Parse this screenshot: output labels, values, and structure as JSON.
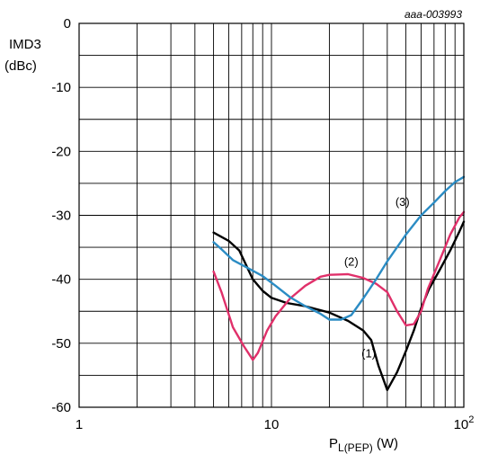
{
  "chart_data": {
    "type": "line",
    "code": "aaa-003993",
    "title": "",
    "ylabel_line1": "IMD3",
    "ylabel_line2": "(dBc)",
    "xlabel": "P",
    "xlabel_sub": "L(PEP)",
    "xlabel_unit": " (W)",
    "xscale": "log",
    "xlim": [
      1,
      100
    ],
    "ylim": [
      -60,
      0
    ],
    "grid": true,
    "x_tick_labels": [
      {
        "x": 1,
        "base": "1",
        "sup": ""
      },
      {
        "x": 10,
        "base": "10",
        "sup": ""
      },
      {
        "x": 100,
        "base": "10",
        "sup": "2"
      }
    ],
    "y_ticks": [
      0,
      -10,
      -20,
      -30,
      -40,
      -50,
      -60
    ],
    "y_tick_labels": [
      "0",
      "-10",
      "-20",
      "-30",
      "-40",
      "-50",
      "-60"
    ],
    "series": [
      {
        "label": "(1)",
        "color": "#000000",
        "label_at": {
          "x": 32,
          "y": -51.5
        },
        "points": [
          [
            5,
            -32.7
          ],
          [
            6,
            -34.0
          ],
          [
            6.8,
            -35.5
          ],
          [
            8,
            -40.0
          ],
          [
            9,
            -41.8
          ],
          [
            10,
            -42.9
          ],
          [
            12,
            -43.7
          ],
          [
            15,
            -44.2
          ],
          [
            20,
            -45.2
          ],
          [
            25,
            -46.5
          ],
          [
            30,
            -48.0
          ],
          [
            33,
            -49.5
          ],
          [
            36,
            -53.5
          ],
          [
            40,
            -57.3
          ],
          [
            45,
            -54.5
          ],
          [
            50,
            -51.2
          ],
          [
            55,
            -48.0
          ],
          [
            60,
            -44.5
          ],
          [
            66,
            -41.5
          ],
          [
            75,
            -38.5
          ],
          [
            85,
            -35.5
          ],
          [
            95,
            -32.5
          ],
          [
            100,
            -31.0
          ]
        ]
      },
      {
        "label": "(2)",
        "color": "#e0306a",
        "label_at": {
          "x": 26,
          "y": -37.2
        },
        "points": [
          [
            5,
            -38.8
          ],
          [
            5.5,
            -42.0
          ],
          [
            6.3,
            -47.5
          ],
          [
            7.2,
            -50.5
          ],
          [
            8,
            -52.6
          ],
          [
            8.5,
            -51.5
          ],
          [
            9.5,
            -48.0
          ],
          [
            10.5,
            -45.8
          ],
          [
            12.5,
            -43.0
          ],
          [
            15,
            -41.0
          ],
          [
            18,
            -39.6
          ],
          [
            20,
            -39.3
          ],
          [
            25,
            -39.2
          ],
          [
            30,
            -39.8
          ],
          [
            35,
            -40.7
          ],
          [
            40,
            -42.0
          ],
          [
            45,
            -45.0
          ],
          [
            50,
            -47.2
          ],
          [
            55,
            -47.0
          ],
          [
            60,
            -45.0
          ],
          [
            65,
            -41.5
          ],
          [
            75,
            -37.0
          ],
          [
            85,
            -33.0
          ],
          [
            95,
            -30.3
          ],
          [
            100,
            -29.5
          ]
        ]
      },
      {
        "label": "(3)",
        "color": "#2b8cc4",
        "label_at": {
          "x": 48,
          "y": -27.8
        },
        "points": [
          [
            5,
            -34.2
          ],
          [
            5.5,
            -35.3
          ],
          [
            6.3,
            -37.0
          ],
          [
            7.5,
            -38.2
          ],
          [
            9,
            -39.5
          ],
          [
            10.5,
            -41.0
          ],
          [
            12.5,
            -42.8
          ],
          [
            15,
            -44.2
          ],
          [
            18,
            -45.4
          ],
          [
            20,
            -46.3
          ],
          [
            23,
            -46.3
          ],
          [
            26,
            -45.6
          ],
          [
            30,
            -43.0
          ],
          [
            35,
            -40.0
          ],
          [
            40,
            -37.2
          ],
          [
            50,
            -33.0
          ],
          [
            60,
            -30.0
          ],
          [
            70,
            -28.0
          ],
          [
            80,
            -26.2
          ],
          [
            90,
            -24.8
          ],
          [
            100,
            -24.0
          ]
        ]
      }
    ]
  }
}
